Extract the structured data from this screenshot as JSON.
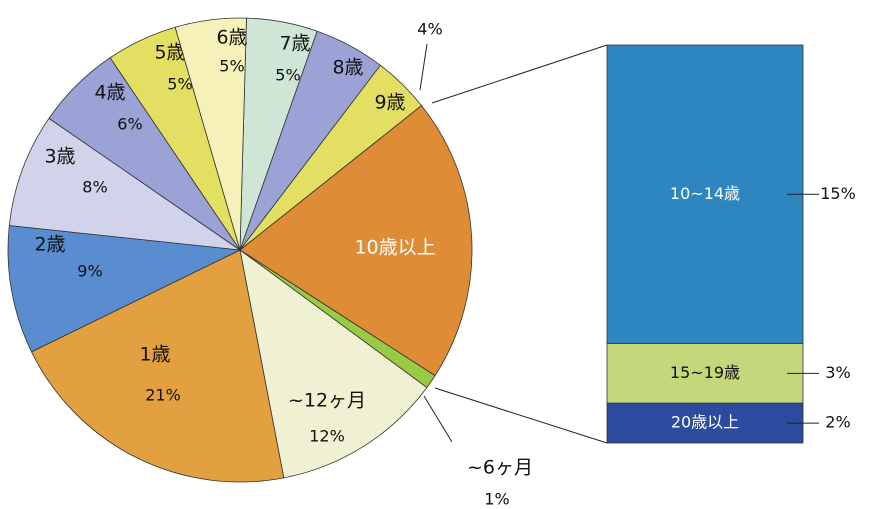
{
  "chart_data": [
    {
      "type": "pie",
      "categories": [
        "7歳",
        "8歳",
        "9歳",
        "10歳以上",
        "~6ヶ月",
        "~12ヶ月",
        "1歳",
        "2歳",
        "3歳",
        "4歳",
        "5歳",
        "6歳"
      ],
      "values": [
        5,
        5,
        4,
        20,
        1,
        12,
        21,
        9,
        8,
        6,
        5,
        5
      ],
      "value_labels": [
        "5%",
        null,
        "4%",
        null,
        "1%",
        "12%",
        "21%",
        "9%",
        "8%",
        "6%",
        "5%",
        "5%"
      ],
      "colors": [
        "#cfe6d6",
        "#9ba3d6",
        "#e2df62",
        "#df8c36",
        "#98cb45",
        "#eff1d2",
        "#e2a040",
        "#5a8dcf",
        "#d0d3ea",
        "#9ba3d6",
        "#e2df62",
        "#f6f1b8"
      ]
    },
    {
      "type": "stacked-bar",
      "categories": [
        "10~14歳",
        "15~19歳",
        "20歳以上"
      ],
      "values": [
        15,
        3,
        2
      ],
      "value_labels": [
        "15%",
        "3%",
        "2%"
      ],
      "colors": [
        "#2e86c1",
        "#c4d77b",
        "#2d4b9e"
      ]
    }
  ]
}
